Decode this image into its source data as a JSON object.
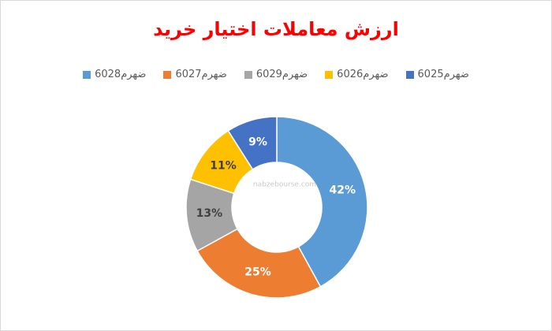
{
  "chart_data": {
    "type": "donut",
    "title": "ارزش معاملات اختیار خرید",
    "categories": [
      "ضهرم6028",
      "ضهرم6027",
      "ضهرم6029",
      "ضهرم6026",
      "ضهرم6025"
    ],
    "values": [
      42,
      25,
      13,
      11,
      9
    ],
    "value_labels": [
      "42%",
      "25%",
      "13%",
      "11%",
      "9%"
    ],
    "colors": [
      "#5b9bd5",
      "#ed7d31",
      "#a5a5a5",
      "#ffc000",
      "#4472c4"
    ],
    "watermark": "nabzebourse.com"
  }
}
